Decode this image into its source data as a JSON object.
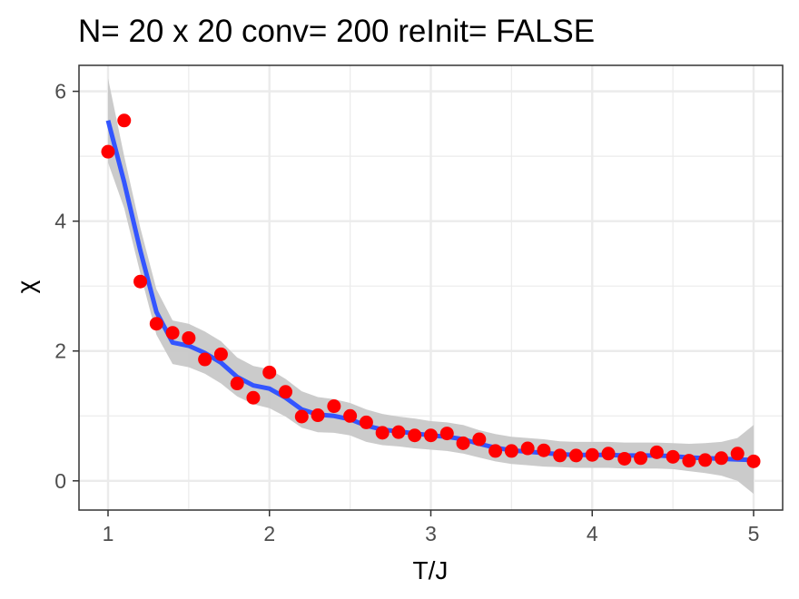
{
  "chart_data": {
    "type": "scatter",
    "title": "N= 20 x 20  conv= 200  reInit= FALSE",
    "xlabel": "T/J",
    "ylabel": "χ",
    "xlim": [
      0.82,
      5.18
    ],
    "ylim": [
      -0.45,
      6.4
    ],
    "xticks": [
      1,
      2,
      3,
      4,
      5
    ],
    "yticks": [
      0,
      2,
      4,
      6
    ],
    "xtick_labels": [
      "1",
      "2",
      "3",
      "4",
      "5"
    ],
    "ytick_labels": [
      "0",
      "2",
      "4",
      "6"
    ],
    "x_minor_breaks": [
      1.5,
      2.5,
      3.5,
      4.5
    ],
    "y_minor_breaks": [
      1,
      3,
      5
    ],
    "grid": true,
    "theme": "bw",
    "colors": {
      "points": "#ff0000",
      "smooth_line": "#3355ff",
      "confidence_band": "#c8c8c8",
      "grid": "#ebebeb",
      "panel_border": "#333333"
    },
    "series": [
      {
        "kind": "points",
        "x": [
          1.0,
          1.1,
          1.2,
          1.3,
          1.4,
          1.5,
          1.6,
          1.7,
          1.8,
          1.9,
          2.0,
          2.1,
          2.2,
          2.3,
          2.4,
          2.5,
          2.6,
          2.7,
          2.8,
          2.9,
          3.0,
          3.1,
          3.2,
          3.3,
          3.4,
          3.5,
          3.6,
          3.7,
          3.8,
          3.9,
          4.0,
          4.1,
          4.2,
          4.3,
          4.4,
          4.5,
          4.6,
          4.7,
          4.8,
          4.9,
          5.0
        ],
        "y": [
          5.07,
          5.55,
          3.07,
          2.42,
          2.28,
          2.2,
          1.87,
          1.95,
          1.5,
          1.28,
          1.67,
          1.37,
          0.99,
          1.01,
          1.15,
          1.0,
          0.9,
          0.74,
          0.75,
          0.7,
          0.7,
          0.73,
          0.58,
          0.64,
          0.46,
          0.46,
          0.5,
          0.47,
          0.39,
          0.39,
          0.4,
          0.42,
          0.34,
          0.35,
          0.44,
          0.37,
          0.31,
          0.32,
          0.35,
          0.42,
          0.3
        ]
      },
      {
        "kind": "smooth",
        "x": [
          1.0,
          1.1,
          1.2,
          1.3,
          1.4,
          1.5,
          1.6,
          1.7,
          1.8,
          1.9,
          2.0,
          2.1,
          2.2,
          2.3,
          2.4,
          2.5,
          2.6,
          2.7,
          2.8,
          2.9,
          3.0,
          3.1,
          3.2,
          3.3,
          3.4,
          3.5,
          3.6,
          3.7,
          3.8,
          3.9,
          4.0,
          4.1,
          4.2,
          4.3,
          4.4,
          4.5,
          4.6,
          4.7,
          4.8,
          4.9,
          5.0
        ],
        "y": [
          5.55,
          4.6,
          3.55,
          2.6,
          2.13,
          2.08,
          1.97,
          1.82,
          1.6,
          1.47,
          1.42,
          1.28,
          1.1,
          1.02,
          1.0,
          0.95,
          0.85,
          0.79,
          0.76,
          0.73,
          0.7,
          0.68,
          0.64,
          0.57,
          0.51,
          0.47,
          0.45,
          0.43,
          0.41,
          0.4,
          0.4,
          0.4,
          0.39,
          0.39,
          0.39,
          0.38,
          0.36,
          0.35,
          0.34,
          0.33,
          0.32
        ],
        "lower": [
          4.9,
          4.2,
          3.2,
          2.25,
          1.8,
          1.75,
          1.65,
          1.5,
          1.3,
          1.18,
          1.12,
          0.99,
          0.82,
          0.75,
          0.74,
          0.7,
          0.6,
          0.55,
          0.53,
          0.5,
          0.48,
          0.46,
          0.42,
          0.36,
          0.3,
          0.26,
          0.24,
          0.22,
          0.21,
          0.2,
          0.2,
          0.2,
          0.19,
          0.19,
          0.19,
          0.18,
          0.15,
          0.12,
          0.08,
          0.0,
          -0.2
        ],
        "upper": [
          6.2,
          5.0,
          3.9,
          2.95,
          2.47,
          2.42,
          2.3,
          2.15,
          1.9,
          1.77,
          1.72,
          1.57,
          1.38,
          1.29,
          1.26,
          1.2,
          1.1,
          1.03,
          0.99,
          0.96,
          0.92,
          0.9,
          0.86,
          0.78,
          0.72,
          0.68,
          0.66,
          0.64,
          0.61,
          0.6,
          0.6,
          0.6,
          0.59,
          0.59,
          0.59,
          0.58,
          0.57,
          0.58,
          0.6,
          0.66,
          0.86
        ]
      }
    ]
  }
}
